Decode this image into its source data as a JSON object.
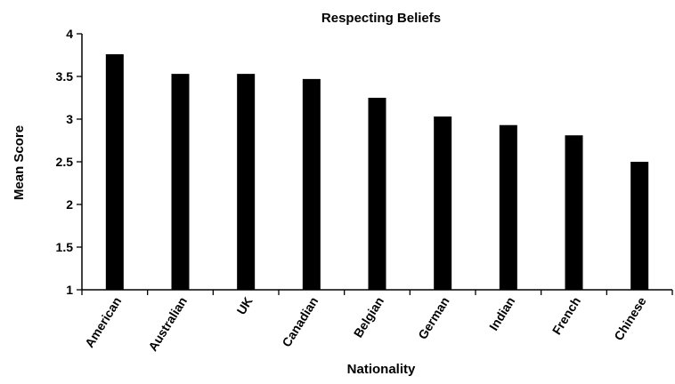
{
  "chart_data": {
    "type": "bar",
    "title": "Respecting Beliefs",
    "xlabel": "Nationality",
    "ylabel": "Mean Score",
    "categories": [
      "American",
      "Australian",
      "UK",
      "Canadian",
      "Belgian",
      "German",
      "Indian",
      "French",
      "Chinese"
    ],
    "values": [
      3.76,
      3.53,
      3.53,
      3.47,
      3.25,
      3.03,
      2.93,
      2.81,
      2.5
    ],
    "ylim": [
      1,
      4
    ],
    "yticks": [
      "1",
      "1.5",
      "2",
      "2.5",
      "3",
      "3.5",
      "4"
    ],
    "grid": false,
    "legend": "none",
    "bar_color": "#000000"
  }
}
